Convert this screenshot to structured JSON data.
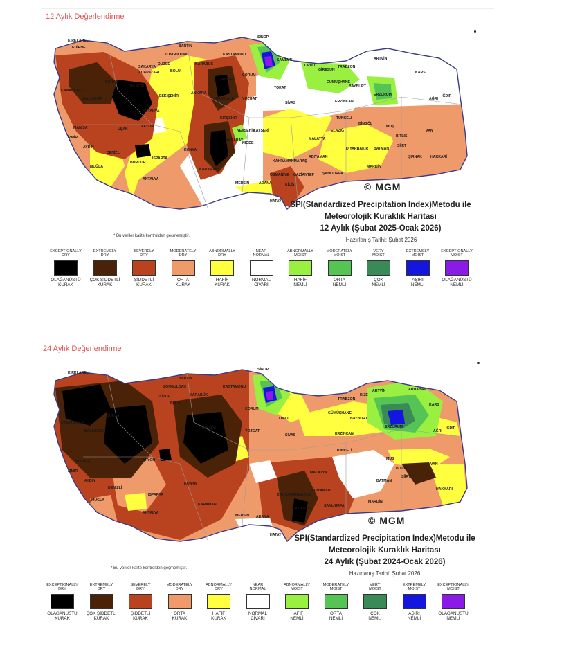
{
  "panels": [
    {
      "title": "12 Aylık Değerlendirme",
      "caption_line1": "SPI(Standardized Precipitation Index)Metodu ile",
      "caption_line2": "Meteorolojik Kuraklık Haritası",
      "caption_line3": "12 Aylık (Şubat 2025-Ocak 2026)",
      "prepared": "Hazırlanış Tarihi: Şubat 2026"
    },
    {
      "title": "24 Aylık Değerlendirme",
      "caption_line1": "SPI(Standardized Precipitation Index)Metodu ile",
      "caption_line2": "Meteorolojik Kuraklık Haritası",
      "caption_line3": "24 Aylık (Şubat 2024-Ocak 2026)",
      "prepared": "Hazırlanış Tarihi: Şubat 2026"
    }
  ],
  "note": "* Bu veriler kalite kontrolden geçmemiştir.",
  "logo": "© MGM",
  "legend": [
    {
      "en1": "EXCEPTIONALLY",
      "en2": "DRY",
      "tr1": "OLAĞANÜSTÜ",
      "tr2": "KURAK",
      "color": "#000000"
    },
    {
      "en1": "EXTREMELY",
      "en2": "DRY",
      "tr1": "ÇOK ŞİDDETLİ",
      "tr2": "KURAK",
      "color": "#4a2208"
    },
    {
      "en1": "SEVERELY",
      "en2": "DRY",
      "tr1": "ŞİDDETLİ",
      "tr2": "KURAK",
      "color": "#b8431e"
    },
    {
      "en1": "MODERATELY",
      "en2": "DRY",
      "tr1": "ORTA",
      "tr2": "KURAK",
      "color": "#ef9a6a"
    },
    {
      "en1": "ABNORMALLY",
      "en2": "DRY",
      "tr1": "HAFİF",
      "tr2": "KURAK",
      "color": "#ffff40"
    },
    {
      "en1": "NEAR",
      "en2": "NORMAL",
      "tr1": "NORMAL",
      "tr2": "CİVARI",
      "color": "#ffffff"
    },
    {
      "en1": "ABNORMALLY",
      "en2": "MOIST",
      "tr1": "HAFİF",
      "tr2": "NEMLİ",
      "color": "#99f040"
    },
    {
      "en1": "MODERATELY",
      "en2": "MOIST",
      "tr1": "ORTA",
      "tr2": "NEMLİ",
      "color": "#55c455"
    },
    {
      "en1": "VERY",
      "en2": "MOIST",
      "tr1": "ÇOK",
      "tr2": "NEMLİ",
      "color": "#3a8a58"
    },
    {
      "en1": "EXTREMELY",
      "en2": "MOIST",
      "tr1": "AŞIRI",
      "tr2": "NEMLİ",
      "color": "#1515e0"
    },
    {
      "en1": "EXCEPTIONALLY",
      "en2": "MOIST",
      "tr1": "OLAĞANÜSTÜ",
      "tr2": "NEMLİ",
      "color": "#8a1ae6"
    }
  ],
  "cities": {
    "p1": [
      "KIRKLARELİ",
      "EDİRNE",
      "BARTIN",
      "ZONGULDAK",
      "KASTAMONU",
      "SİNOP",
      "ORDU",
      "TRABZON",
      "ARTVİN",
      "KARS",
      "AĞRI",
      "IĞDIR",
      "SAMSUN",
      "GİRESUN",
      "GÜMÜŞHANE",
      "BAYBURT",
      "ERZURUM",
      "TOKAT",
      "SİVAS",
      "ERZİNCAN",
      "TUNCELİ",
      "BİNGÖL",
      "MUŞ",
      "BİTLİS",
      "VAN",
      "HAKKARİ",
      "ŞIRNAK",
      "SİİRT",
      "BATMAN",
      "MARDİN",
      "DİYARBAKIR",
      "ELAZIĞ",
      "MALATYA",
      "ADIYAMAN",
      "ŞANLIURFA",
      "GAZİANTEP",
      "KİLİS",
      "HATAY",
      "OSMANİYE",
      "ADANA",
      "MERSİN",
      "KAHRAMANMARAŞ",
      "KAYSERİ",
      "NEVŞEHİR",
      "NİĞDE",
      "AKSARAY",
      "KIRŞEHİR",
      "YOZGAT",
      "ÇORUM",
      "ÇANKIRI",
      "ANKARA",
      "KIRIKKALE",
      "KARABÜK",
      "BOLU",
      "DÜZCE",
      "SAKARYA",
      "ADAPAZARI",
      "BİLECİK",
      "BURSA",
      "BALIKESİR",
      "ÇANAKKALE",
      "MANİSA",
      "İZMİR",
      "AYDIN",
      "MUĞLA",
      "DENİZLİ",
      "UŞAK",
      "AFYON",
      "KÜTAHYA",
      "ESKİŞEHİR",
      "ISPARTA",
      "BURDUR",
      "ANTALYA",
      "KONYA",
      "KARAMAN"
    ],
    "p2": [
      "KIRKLARELİ",
      "BARTIN",
      "ZONGULDAK",
      "KARABÜK",
      "KASTAMONU",
      "SİNOP",
      "TRABZON",
      "RİZE",
      "ARTVİN",
      "ARDAHAN",
      "KARS",
      "AĞRI",
      "IĞDIR",
      "GÜMÜŞHANE",
      "BAYBURT",
      "ERZURUM",
      "ERZİNCAN",
      "TUNCELİ",
      "MUŞ",
      "BİTLİS",
      "VAN",
      "HAKKARİ",
      "SİİRT",
      "BATMAN",
      "MARDİN",
      "ŞANLIURFA",
      "ADIYAMAN",
      "MALATYA",
      "SİVAS",
      "TOKAT",
      "YOZGAT",
      "ÇORUM",
      "ANKARA",
      "KONYA",
      "KARAMAN",
      "MERSİN",
      "ADANA",
      "HATAY",
      "GAZİANTEP",
      "KAHRAMANMARAŞ",
      "AFYON",
      "DENİZLİ",
      "ISPARTA",
      "ANTALYA",
      "MANİSA",
      "İZMİR",
      "AYDIN",
      "MUĞLA",
      "BALIKESİR",
      "ÇANAKKALE",
      "BURSA",
      "DÜZCE",
      "BOLU"
    ]
  }
}
